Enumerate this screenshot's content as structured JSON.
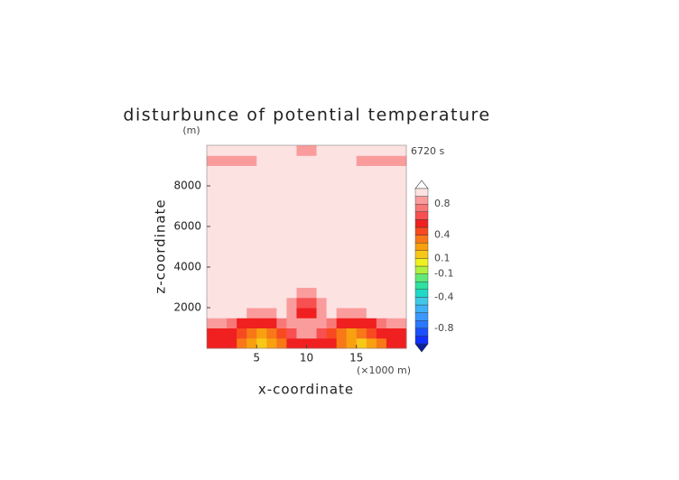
{
  "chart_data": {
    "type": "contour",
    "title": "disturbunce of potential temperature",
    "ylabel": "z-coordinate",
    "xlabel": "x-coordinate",
    "yunit": "(m)",
    "xunit": "(×1000 m)",
    "annotation": "6720 s",
    "xlim": [
      0,
      20
    ],
    "ylim": [
      0,
      10000
    ],
    "xticks": [
      5,
      10,
      15
    ],
    "yticks": [
      2000,
      4000,
      6000,
      8000
    ],
    "levels": [
      -1,
      -0.9,
      -0.8,
      -0.7,
      -0.6,
      -0.5,
      -0.4,
      -0.3,
      -0.2,
      -0.1,
      0,
      0.1,
      0.2,
      0.3,
      0.4,
      0.5,
      0.6,
      0.7,
      0.8,
      0.9,
      1
    ],
    "colors": [
      "#0a1fa0",
      "#1030ff",
      "#1a50ff",
      "#2a78ff",
      "#3a98ff",
      "#40b0f8",
      "#40c8e8",
      "#20d8c8",
      "#30e0a0",
      "#60e878",
      "#b0f040",
      "#f0f020",
      "#f8c818",
      "#f8a010",
      "#f87818",
      "#f84a20",
      "#f02020",
      "#f85050",
      "#f87878",
      "#fa9c9c",
      "#fde2e2",
      "#ffffff"
    ],
    "cbticks": [
      0.8,
      0.4,
      0.1,
      -0.1,
      -0.4,
      -0.8
    ],
    "z": [
      [
        0.5,
        0.5,
        0.5,
        0.3,
        0.2,
        0.15,
        0.2,
        0.3,
        0.5,
        0.5,
        0.5,
        0.5,
        0.5,
        0.3,
        0.2,
        0.15,
        0.2,
        0.3,
        0.5,
        0.5
      ],
      [
        0.5,
        0.5,
        0.55,
        0.4,
        0.3,
        0.25,
        0.3,
        0.45,
        0.6,
        0.85,
        0.85,
        0.6,
        0.45,
        0.3,
        0.25,
        0.3,
        0.4,
        0.55,
        0.5,
        0.5
      ],
      [
        0.85,
        0.85,
        0.7,
        0.55,
        0.5,
        0.5,
        0.55,
        0.7,
        0.85,
        0.85,
        0.85,
        0.85,
        0.7,
        0.55,
        0.5,
        0.5,
        0.55,
        0.7,
        0.85,
        0.85
      ],
      [
        0.95,
        0.95,
        0.95,
        0.95,
        0.85,
        0.85,
        0.85,
        0.95,
        0.85,
        0.5,
        0.5,
        0.85,
        0.95,
        0.85,
        0.85,
        0.85,
        0.95,
        0.95,
        0.95,
        0.95
      ],
      [
        0.95,
        0.95,
        0.95,
        0.95,
        0.95,
        0.95,
        0.95,
        0.95,
        0.85,
        0.6,
        0.6,
        0.85,
        0.95,
        0.95,
        0.95,
        0.95,
        0.95,
        0.95,
        0.95,
        0.95
      ],
      [
        0.95,
        0.95,
        0.95,
        0.95,
        0.95,
        0.95,
        0.95,
        0.95,
        0.95,
        0.85,
        0.85,
        0.95,
        0.95,
        0.95,
        0.95,
        0.95,
        0.95,
        0.95,
        0.95,
        0.95
      ],
      [
        0.95,
        0.95,
        0.95,
        0.95,
        0.95,
        0.95,
        0.95,
        0.95,
        0.95,
        0.95,
        0.95,
        0.95,
        0.95,
        0.95,
        0.95,
        0.95,
        0.95,
        0.95,
        0.95,
        0.95
      ],
      [
        0.95,
        0.95,
        0.95,
        0.95,
        0.95,
        0.95,
        0.95,
        0.95,
        0.95,
        0.95,
        0.95,
        0.95,
        0.95,
        0.95,
        0.95,
        0.95,
        0.95,
        0.95,
        0.95,
        0.95
      ],
      [
        0.95,
        0.95,
        0.95,
        0.95,
        0.95,
        0.95,
        0.95,
        0.95,
        0.95,
        0.95,
        0.95,
        0.95,
        0.95,
        0.95,
        0.95,
        0.95,
        0.95,
        0.95,
        0.95,
        0.95
      ],
      [
        0.95,
        0.95,
        0.95,
        0.95,
        0.95,
        0.95,
        0.95,
        0.95,
        0.95,
        0.95,
        0.95,
        0.95,
        0.95,
        0.95,
        0.95,
        0.95,
        0.95,
        0.95,
        0.95,
        0.95
      ],
      [
        0.95,
        0.95,
        0.95,
        0.95,
        0.95,
        0.95,
        0.95,
        0.95,
        0.95,
        0.95,
        0.95,
        0.95,
        0.95,
        0.95,
        0.95,
        0.95,
        0.95,
        0.95,
        0.95,
        0.95
      ],
      [
        0.95,
        0.95,
        0.95,
        0.95,
        0.95,
        0.95,
        0.95,
        0.95,
        0.95,
        0.95,
        0.95,
        0.95,
        0.95,
        0.95,
        0.95,
        0.95,
        0.95,
        0.95,
        0.95,
        0.95
      ],
      [
        0.95,
        0.95,
        0.95,
        0.95,
        0.95,
        0.95,
        0.95,
        0.95,
        0.95,
        0.95,
        0.95,
        0.95,
        0.95,
        0.95,
        0.95,
        0.95,
        0.95,
        0.95,
        0.95,
        0.95
      ],
      [
        0.95,
        0.95,
        0.95,
        0.95,
        0.95,
        0.95,
        0.95,
        0.95,
        0.95,
        0.95,
        0.95,
        0.95,
        0.95,
        0.95,
        0.95,
        0.95,
        0.95,
        0.95,
        0.95,
        0.95
      ],
      [
        0.95,
        0.95,
        0.95,
        0.95,
        0.95,
        0.95,
        0.95,
        0.95,
        0.95,
        0.95,
        0.95,
        0.95,
        0.95,
        0.95,
        0.95,
        0.95,
        0.95,
        0.95,
        0.95,
        0.95
      ],
      [
        0.95,
        0.95,
        0.95,
        0.95,
        0.95,
        0.95,
        0.95,
        0.95,
        0.95,
        0.95,
        0.95,
        0.95,
        0.95,
        0.95,
        0.95,
        0.95,
        0.95,
        0.95,
        0.95,
        0.95
      ],
      [
        0.95,
        0.95,
        0.95,
        0.95,
        0.95,
        0.95,
        0.95,
        0.95,
        0.95,
        0.95,
        0.95,
        0.95,
        0.95,
        0.95,
        0.95,
        0.95,
        0.95,
        0.95,
        0.95,
        0.95
      ],
      [
        0.95,
        0.95,
        0.95,
        0.95,
        0.95,
        0.95,
        0.95,
        0.95,
        0.95,
        0.95,
        0.95,
        0.95,
        0.95,
        0.95,
        0.95,
        0.95,
        0.95,
        0.95,
        0.95,
        0.95
      ],
      [
        0.85,
        0.85,
        0.85,
        0.85,
        0.85,
        0.95,
        0.95,
        0.95,
        0.95,
        0.95,
        0.95,
        0.95,
        0.95,
        0.95,
        0.95,
        0.85,
        0.85,
        0.85,
        0.85,
        0.85
      ],
      [
        0.95,
        0.95,
        0.95,
        0.95,
        0.95,
        0.95,
        0.95,
        0.95,
        0.95,
        0.85,
        0.85,
        0.95,
        0.95,
        0.95,
        0.95,
        0.95,
        0.95,
        0.95,
        0.95,
        0.95
      ]
    ]
  }
}
